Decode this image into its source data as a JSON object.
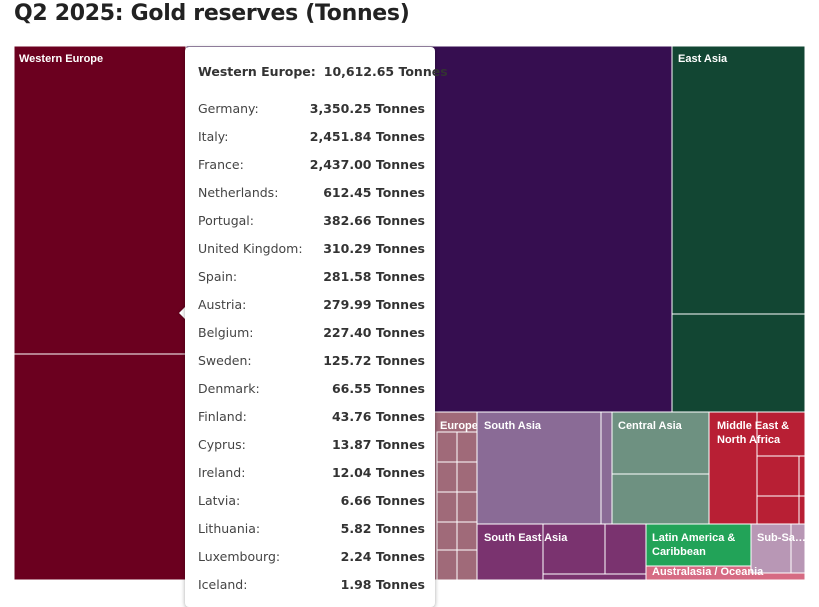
{
  "chart_data": {
    "type": "treemap",
    "title": "Q2 2025: Gold reserves (Tonnes)",
    "unit": "Tonnes",
    "regions": [
      {
        "name": "Western Europe",
        "color": "#6b001f"
      },
      {
        "name": "East Asia",
        "color": "#124633"
      },
      {
        "name": "Europe",
        "color": "#a06a79"
      },
      {
        "name": "South Asia",
        "color": "#8a6b96"
      },
      {
        "name": "Central Asia",
        "color": "#6e9181"
      },
      {
        "name": "Middle East & North Africa",
        "color": "#b81f34"
      },
      {
        "name": "South East Asia",
        "color": "#7a336f"
      },
      {
        "name": "Latin America & Caribbean",
        "color": "#22a358"
      },
      {
        "name": "Sub-Sa…",
        "color": "#b897b5"
      },
      {
        "name": "Australasia / Oceania",
        "color": "#d66b83"
      }
    ],
    "tooltip": {
      "region": "Western Europe",
      "total": "10,612.65 Tonnes",
      "countries": [
        {
          "name": "Germany",
          "value": 3350.25,
          "label": "3,350.25 Tonnes"
        },
        {
          "name": "Italy",
          "value": 2451.84,
          "label": "2,451.84 Tonnes"
        },
        {
          "name": "France",
          "value": 2437.0,
          "label": "2,437.00 Tonnes"
        },
        {
          "name": "Netherlands",
          "value": 612.45,
          "label": "612.45 Tonnes"
        },
        {
          "name": "Portugal",
          "value": 382.66,
          "label": "382.66 Tonnes"
        },
        {
          "name": "United Kingdom",
          "value": 310.29,
          "label": "310.29 Tonnes"
        },
        {
          "name": "Spain",
          "value": 281.58,
          "label": "281.58 Tonnes"
        },
        {
          "name": "Austria",
          "value": 279.99,
          "label": "279.99 Tonnes"
        },
        {
          "name": "Belgium",
          "value": 227.4,
          "label": "227.40 Tonnes"
        },
        {
          "name": "Sweden",
          "value": 125.72,
          "label": "125.72 Tonnes"
        },
        {
          "name": "Denmark",
          "value": 66.55,
          "label": "66.55 Tonnes"
        },
        {
          "name": "Finland",
          "value": 43.76,
          "label": "43.76 Tonnes"
        },
        {
          "name": "Cyprus",
          "value": 13.87,
          "label": "13.87 Tonnes"
        },
        {
          "name": "Ireland",
          "value": 12.04,
          "label": "12.04 Tonnes"
        },
        {
          "name": "Latvia",
          "value": 6.66,
          "label": "6.66 Tonnes"
        },
        {
          "name": "Lithuania",
          "value": 5.82,
          "label": "5.82 Tonnes"
        },
        {
          "name": "Luxembourg",
          "value": 2.24,
          "label": "2.24 Tonnes"
        },
        {
          "name": "Iceland",
          "value": 1.98,
          "label": "1.98 Tonnes"
        }
      ]
    }
  }
}
